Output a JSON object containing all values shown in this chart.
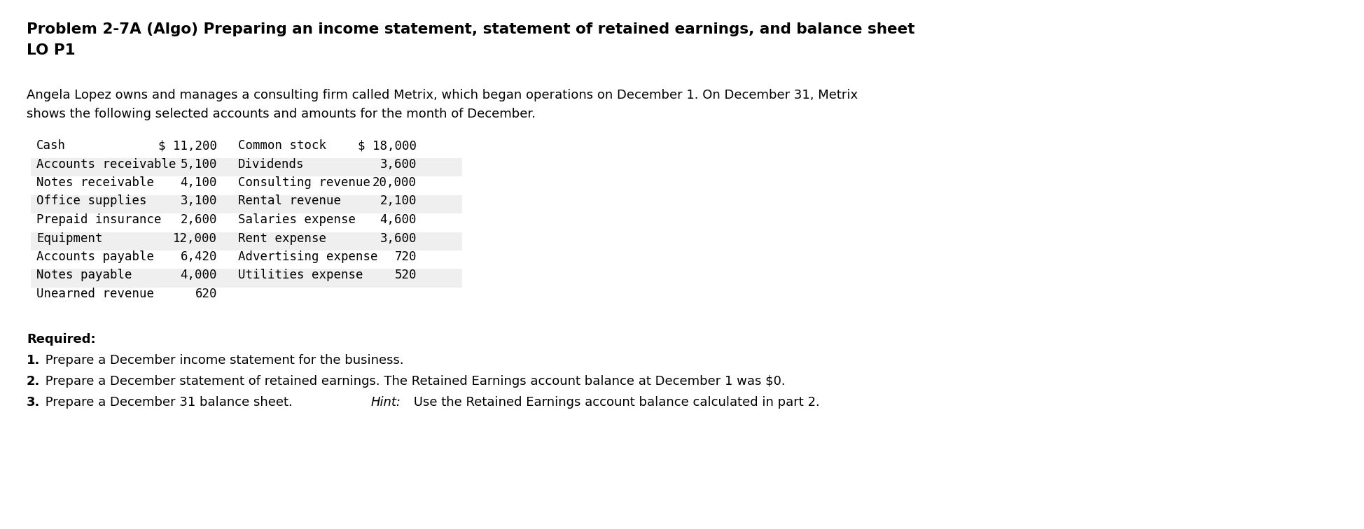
{
  "title_line1": "Problem 2-7A (Algo) Preparing an income statement, statement of retained earnings, and balance sheet",
  "title_line2": "LO P1",
  "intro_line1": "Angela Lopez owns and manages a consulting firm called Metrix, which began operations on December 1. On December 31, Metrix",
  "intro_line2": "shows the following selected accounts and amounts for the month of December.",
  "left_accounts": [
    [
      "Cash",
      "$ 11,200"
    ],
    [
      "Accounts receivable",
      "5,100"
    ],
    [
      "Notes receivable",
      "4,100"
    ],
    [
      "Office supplies",
      "3,100"
    ],
    [
      "Prepaid insurance",
      "2,600"
    ],
    [
      "Equipment",
      "12,000"
    ],
    [
      "Accounts payable",
      "6,420"
    ],
    [
      "Notes payable",
      "4,000"
    ],
    [
      "Unearned revenue",
      "620"
    ]
  ],
  "right_accounts": [
    [
      "Common stock",
      "$ 18,000"
    ],
    [
      "Dividends",
      "3,600"
    ],
    [
      "Consulting revenue",
      "20,000"
    ],
    [
      "Rental revenue",
      "2,100"
    ],
    [
      "Salaries expense",
      "4,600"
    ],
    [
      "Rent expense",
      "3,600"
    ],
    [
      "Advertising expense",
      "720"
    ],
    [
      "Utilities expense",
      "520"
    ]
  ],
  "required_header": "Required:",
  "req1_bold": "1.",
  "req1_rest": " Prepare a December income statement for the business.",
  "req2_bold": "2.",
  "req2_rest": " Prepare a December statement of retained earnings. The Retained Earnings account balance at December 1 was $0.",
  "req3_bold": "3.",
  "req3_before_hint": " Prepare a December 31 balance sheet. ",
  "req3_hint": "Hint:",
  "req3_after_hint": " Use the Retained Earnings account balance calculated in part 2.",
  "bg_color": "#ffffff",
  "text_color": "#000000",
  "row_bg_odd": "#efefef",
  "row_bg_even": "#ffffff",
  "mono_font": "DejaVu Sans Mono",
  "sans_font": "DejaVu Sans"
}
